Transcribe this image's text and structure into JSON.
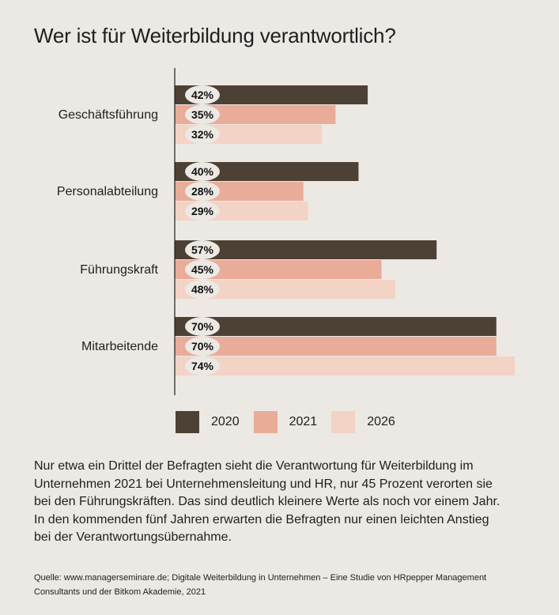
{
  "chart_data": {
    "type": "bar",
    "orientation": "horizontal",
    "title": "Wer ist für Weiterbildung verantwortlich?",
    "categories": [
      "Geschäftsführung",
      "Personalabteilung",
      "Führungskraft",
      "Mitarbeitende"
    ],
    "series": [
      {
        "name": "2020",
        "values": [
          42,
          40,
          57,
          70
        ],
        "color": "#4d4135"
      },
      {
        "name": "2021",
        "values": [
          35,
          28,
          45,
          70
        ],
        "color": "#e9ac98"
      },
      {
        "name": "2026",
        "values": [
          32,
          29,
          48,
          74
        ],
        "color": "#f2d3c6"
      }
    ],
    "value_suffix": "%",
    "xlim": [
      0,
      74
    ],
    "grid": false,
    "legend_position": "bottom"
  },
  "description": "Nur etwa ein Drittel der Befragten sieht die Verantwortung für Weiterbildung im Unternehmen 2021 bei Unternehmensleitung und HR, nur 45 Prozent verorten sie bei den Führungskräften. Das sind deutlich kleinere Werte als noch vor einem Jahr. In den kommenden fünf Jahren erwarten die Befragten nur einen leichten Anstieg bei der Verantwortungsübernahme.",
  "source": "Quelle: www.managerseminare.de; Digitale Weiterbildung in Unternehmen – Eine Studie von HRpepper Management Consultants und der Bitkom Akademie, 2021"
}
